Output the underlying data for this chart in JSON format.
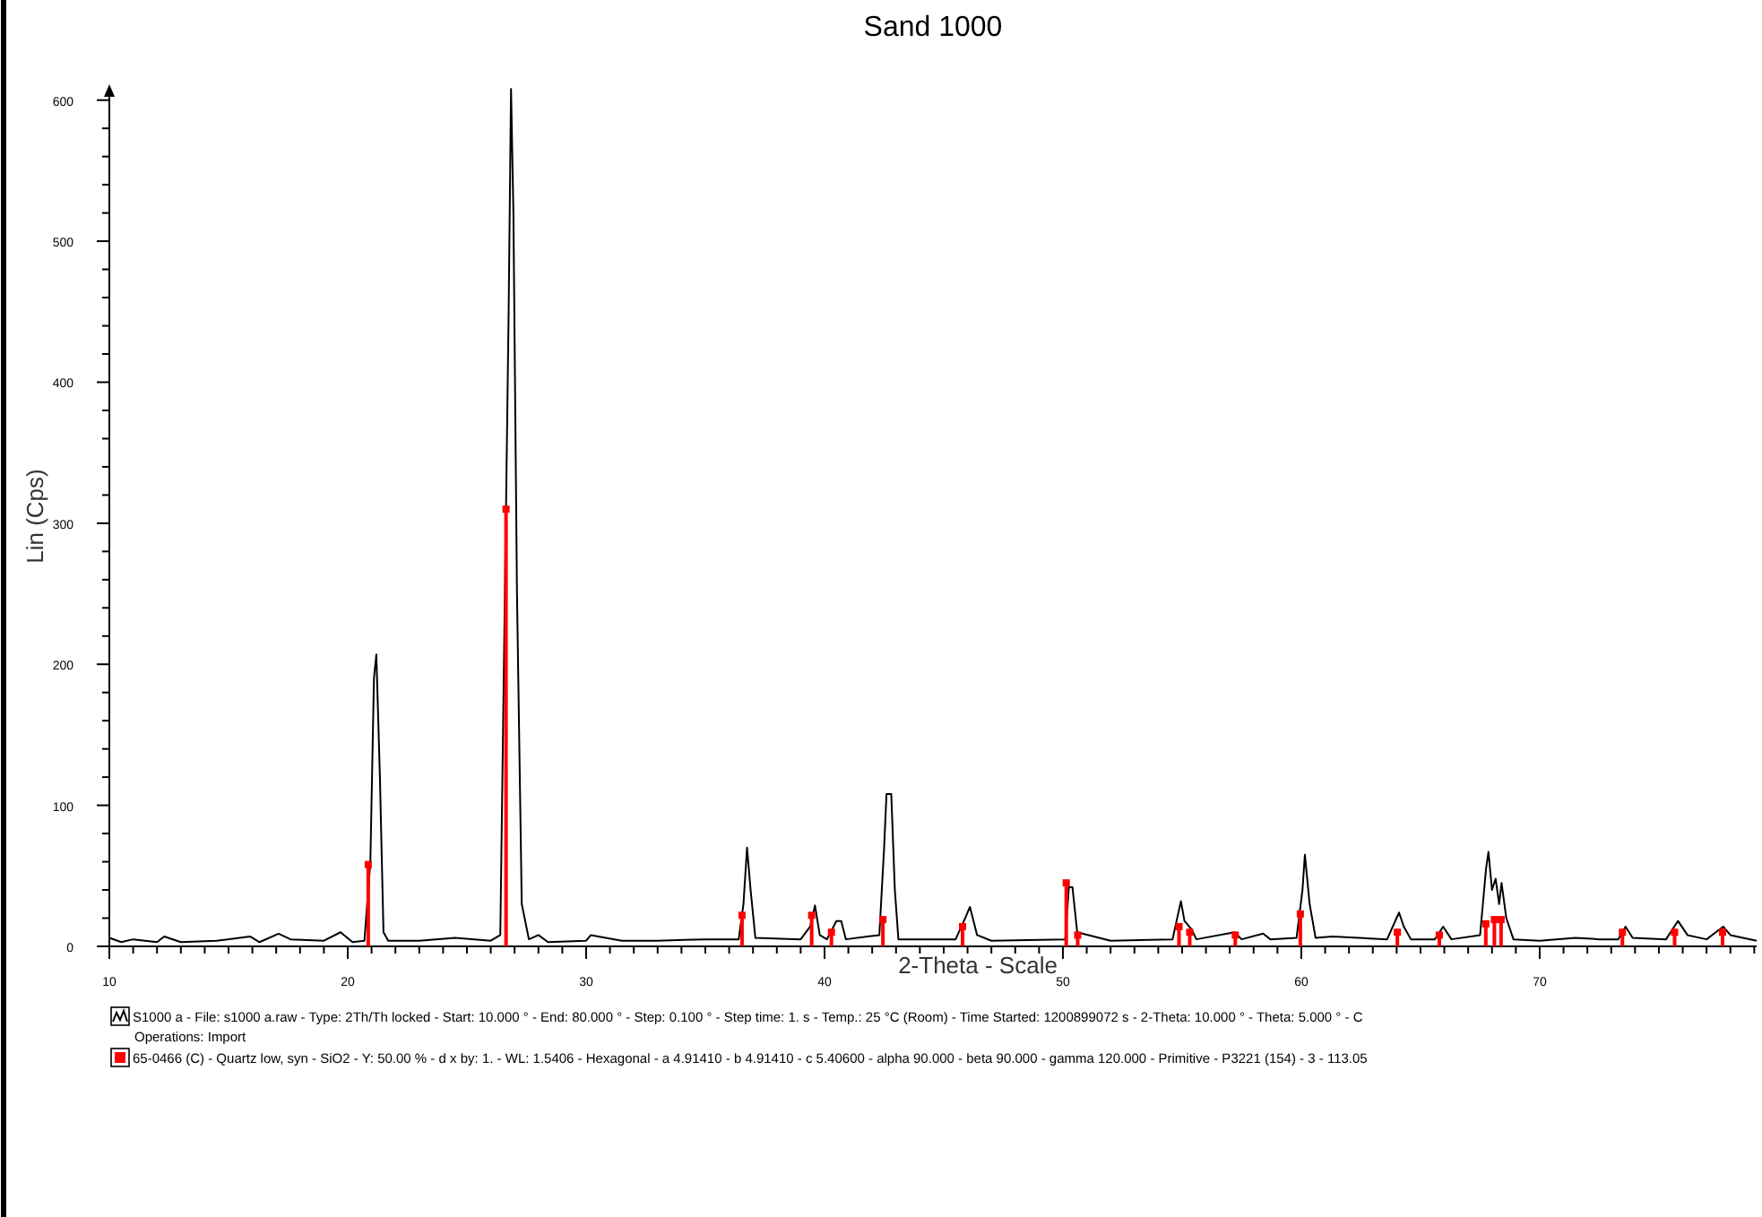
{
  "chart_data": {
    "type": "line",
    "title": "Sand 1000",
    "xlabel": "2-Theta - Scale",
    "ylabel": "Lin (Cps)",
    "xlim": [
      10,
      79.1
    ],
    "ylim": [
      0,
      610
    ],
    "xticks": [
      10,
      {
        "value": 11,
        "label": null
      },
      {
        "value": 12,
        "label": null
      },
      {
        "value": 13,
        "label": null
      },
      {
        "value": 14,
        "label": null
      },
      {
        "value": 15,
        "label": null
      },
      {
        "value": 16,
        "label": null
      },
      {
        "value": 17,
        "label": null
      },
      {
        "value": 18,
        "label": null
      },
      {
        "value": 19,
        "label": null
      },
      20,
      {
        "value": 21,
        "label": null
      },
      {
        "value": 22,
        "label": null
      },
      {
        "value": 23,
        "label": null
      },
      {
        "value": 24,
        "label": null
      },
      {
        "value": 25,
        "label": null
      },
      {
        "value": 26,
        "label": null
      },
      {
        "value": 27,
        "label": null
      },
      {
        "value": 28,
        "label": null
      },
      {
        "value": 29,
        "label": null
      },
      30,
      {
        "value": 31,
        "label": null
      },
      {
        "value": 32,
        "label": null
      },
      {
        "value": 33,
        "label": null
      },
      {
        "value": 34,
        "label": null
      },
      {
        "value": 35,
        "label": null
      },
      {
        "value": 36,
        "label": null
      },
      {
        "value": 37,
        "label": null
      },
      {
        "value": 38,
        "label": null
      },
      {
        "value": 39,
        "label": null
      },
      40,
      {
        "value": 41,
        "label": null
      },
      {
        "value": 42,
        "label": null
      },
      {
        "value": 43,
        "label": null
      },
      {
        "value": 44,
        "label": null
      },
      {
        "value": 45,
        "label": null
      },
      {
        "value": 46,
        "label": null
      },
      {
        "value": 47,
        "label": null
      },
      {
        "value": 48,
        "label": null
      },
      {
        "value": 49,
        "label": null
      },
      50,
      {
        "value": 51,
        "label": null
      },
      {
        "value": 52,
        "label": null
      },
      {
        "value": 53,
        "label": null
      },
      {
        "value": 54,
        "label": null
      },
      {
        "value": 55,
        "label": null
      },
      {
        "value": 56,
        "label": null
      },
      {
        "value": 57,
        "label": null
      },
      {
        "value": 58,
        "label": null
      },
      {
        "value": 59,
        "label": null
      },
      60,
      {
        "value": 61,
        "label": null
      },
      {
        "value": 62,
        "label": null
      },
      {
        "value": 63,
        "label": null
      },
      {
        "value": 64,
        "label": null
      },
      {
        "value": 65,
        "label": null
      },
      {
        "value": 66,
        "label": null
      },
      {
        "value": 67,
        "label": null
      },
      {
        "value": 68,
        "label": null
      },
      {
        "value": 69,
        "label": null
      },
      70,
      {
        "value": 71,
        "label": null
      },
      {
        "value": 72,
        "label": null
      },
      {
        "value": 73,
        "label": null
      },
      {
        "value": 74,
        "label": null
      },
      {
        "value": 75,
        "label": null
      },
      {
        "value": 76,
        "label": null
      },
      {
        "value": 77,
        "label": null
      },
      {
        "value": 78,
        "label": null
      },
      {
        "value": 79,
        "label": null
      }
    ],
    "yticks": [
      0,
      {
        "value": 20,
        "label": null
      },
      {
        "value": 40,
        "label": null
      },
      {
        "value": 60,
        "label": null
      },
      {
        "value": 80,
        "label": null
      },
      100,
      {
        "value": 120,
        "label": null
      },
      {
        "value": 140,
        "label": null
      },
      {
        "value": 160,
        "label": null
      },
      {
        "value": 180,
        "label": null
      },
      200,
      {
        "value": 220,
        "label": null
      },
      {
        "value": 240,
        "label": null
      },
      {
        "value": 260,
        "label": null
      },
      {
        "value": 280,
        "label": null
      },
      300,
      {
        "value": 320,
        "label": null
      },
      {
        "value": 340,
        "label": null
      },
      {
        "value": 360,
        "label": null
      },
      {
        "value": 380,
        "label": null
      },
      400,
      {
        "value": 420,
        "label": null
      },
      {
        "value": 440,
        "label": null
      },
      {
        "value": 460,
        "label": null
      },
      {
        "value": 480,
        "label": null
      },
      500,
      {
        "value": 520,
        "label": null
      },
      {
        "value": 540,
        "label": null
      },
      {
        "value": 560,
        "label": null
      },
      {
        "value": 580,
        "label": null
      },
      600
    ],
    "legend": "bottom",
    "series": [
      {
        "name": "S1000 a - File: s1000 a.raw - Type: 2Th/Th locked - Start: 10.000 ° - End: 80.000 ° - Step: 0.100 ° - Step time: 1. s - Temp.: 25 °C (Room) - Time Started: 1200899072 s - 2-Theta: 10.000 ° - Theta: 5.000 ° - C\nOperations: Import",
        "color": "#000000",
        "x": [
          10,
          10.5,
          11,
          12,
          12.3,
          13,
          14.5,
          15.9,
          16.3,
          17.1,
          17.6,
          19,
          19.7,
          20.2,
          20.7,
          20.95,
          21.1,
          21.2,
          21.35,
          21.5,
          21.7,
          23,
          24.5,
          26,
          26.4,
          26.75,
          26.85,
          26.95,
          27.1,
          27.3,
          27.6,
          28,
          28.4,
          30,
          30.2,
          31.5,
          33,
          35,
          36.4,
          36.6,
          36.75,
          36.9,
          37.1,
          39,
          39.4,
          39.6,
          39.8,
          40.1,
          40.5,
          40.7,
          40.9,
          41.8,
          42.3,
          42.5,
          42.6,
          42.8,
          42.95,
          43.1,
          45.5,
          45.9,
          46.1,
          46.4,
          47,
          50.1,
          50.25,
          50.4,
          50.6,
          52,
          54.6,
          54.95,
          55.1,
          55.4,
          55.6,
          57.2,
          57.5,
          58.4,
          58.7,
          59.8,
          60.05,
          60.15,
          60.35,
          60.6,
          61.3,
          63.6,
          64.1,
          64.3,
          64.6,
          65.6,
          65.95,
          66.3,
          67.5,
          67.75,
          67.85,
          68,
          68.15,
          68.3,
          68.4,
          68.6,
          68.9,
          70,
          71.5,
          72.5,
          73.3,
          73.6,
          73.9,
          75.3,
          75.8,
          76.2,
          77,
          77.7,
          78,
          79.1
        ],
        "values": [
          6,
          3,
          5,
          3,
          7,
          3,
          4,
          7,
          3,
          9,
          5,
          4,
          10,
          3,
          4,
          60,
          190,
          207,
          120,
          10,
          4,
          4,
          6,
          4,
          8,
          450,
          608,
          520,
          250,
          30,
          5,
          8,
          3,
          4,
          8,
          4,
          4,
          5,
          5,
          30,
          70,
          40,
          6,
          5,
          14,
          29,
          8,
          5,
          18,
          18,
          5,
          7,
          8,
          70,
          108,
          108,
          40,
          5,
          5,
          20,
          28,
          8,
          4,
          5,
          42,
          42,
          10,
          4,
          5,
          32,
          18,
          12,
          5,
          10,
          5,
          9,
          5,
          6,
          40,
          65,
          30,
          6,
          7,
          5,
          24,
          14,
          5,
          5,
          14,
          5,
          8,
          55,
          67,
          40,
          48,
          30,
          45,
          20,
          5,
          4,
          6,
          5,
          5,
          14,
          6,
          5,
          18,
          8,
          5,
          14,
          8,
          4
        ]
      },
      {
        "type": "lollipop",
        "marker": "square",
        "name": "65-0466 (C) - Quartz low, syn - SiO2 - Y: 50.00 % - d x by: 1. - WL: 1.5406 - Hexagonal - a 4.91410 - b 4.91410 - c 5.40600 - alpha 90.000 - beta 90.000 - gamma 120.000 - Primitive - P3221 (154) - 3 - 113.05",
        "color": "#ff0000",
        "x": [
          20.86,
          26.64,
          36.54,
          39.46,
          40.29,
          42.45,
          45.79,
          50.14,
          50.62,
          54.87,
          55.32,
          57.23,
          59.96,
          64.03,
          65.79,
          67.74,
          68.1,
          68.38,
          73.47,
          75.66,
          77.67
        ],
        "values": [
          58,
          310,
          22,
          22,
          10,
          19,
          14,
          45,
          8,
          14,
          10,
          8,
          23,
          10,
          8,
          16,
          19,
          19,
          10,
          10,
          10
        ]
      }
    ]
  }
}
